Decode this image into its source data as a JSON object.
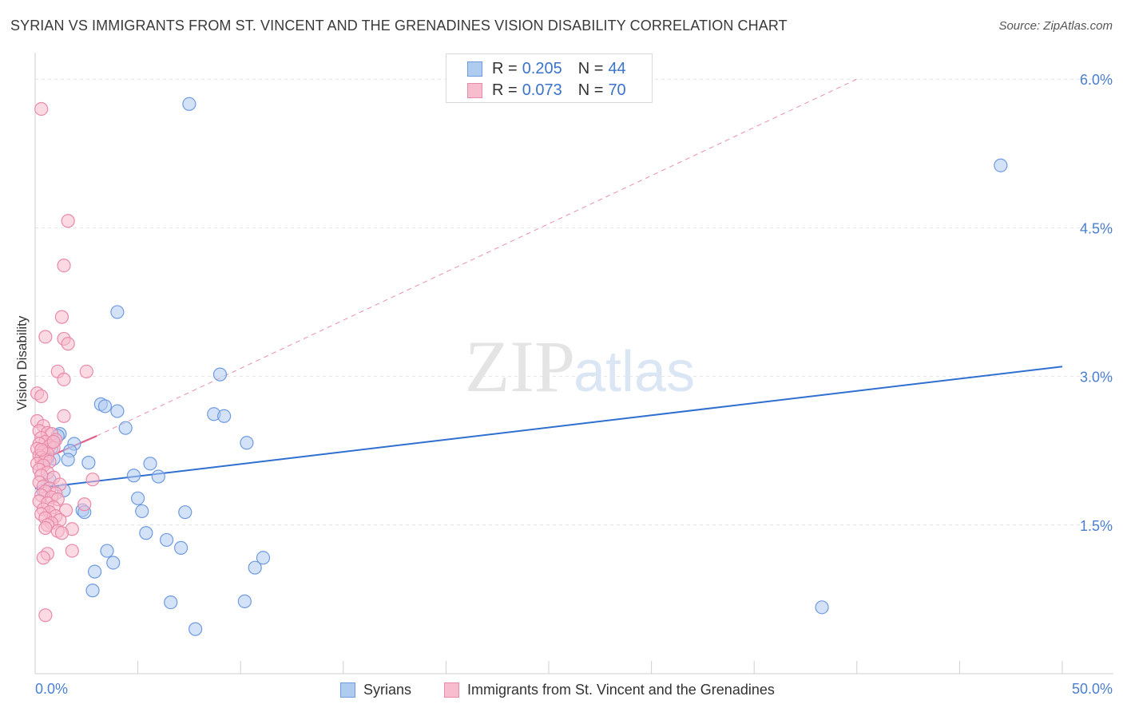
{
  "header": {
    "title": "SYRIAN VS IMMIGRANTS FROM ST. VINCENT AND THE GRENADINES VISION DISABILITY CORRELATION CHART",
    "source": "Source: ZipAtlas.com"
  },
  "watermark": {
    "zip": "ZIP",
    "atlas": "atlas"
  },
  "legend_top": [
    {
      "r_label": "R = ",
      "r_value": "0.205",
      "n_label": "N = ",
      "n_value": "44"
    },
    {
      "r_label": "R = ",
      "r_value": "0.073",
      "n_label": "N = ",
      "n_value": "70"
    }
  ],
  "legend_bottom": {
    "syrians": "Syrians",
    "immigrants": "Immigrants from St. Vincent and the Grenadines"
  },
  "colors": {
    "blue_fill": "#aecbf0",
    "blue_stroke": "#6f9be0",
    "blue_line": "#2f6fcf",
    "pink_fill": "#f7bccd",
    "pink_stroke": "#e98aa8",
    "pink_line": "#e0608a",
    "axis_text": "#4a7fd0",
    "grid": "#e2e2e2"
  },
  "chart_data": {
    "type": "scatter",
    "title": "SYRIAN VS IMMIGRANTS FROM ST. VINCENT AND THE GRENADINES VISION DISABILITY CORRELATION CHART",
    "xlabel": "",
    "ylabel": "Vision Disability",
    "xlim": [
      0,
      50
    ],
    "ylim": [
      0.0,
      6.3
    ],
    "x_tick_labels": [
      "0.0%",
      "50.0%"
    ],
    "y_ticks": [
      1.5,
      3.0,
      4.5,
      6.0
    ],
    "y_tick_labels": [
      "1.5%",
      "3.0%",
      "4.5%",
      "6.0%"
    ],
    "series": [
      {
        "name": "Syrians",
        "color": "blue",
        "points": [
          [
            7.5,
            5.75
          ],
          [
            47.0,
            5.13
          ],
          [
            4.0,
            3.65
          ],
          [
            9.0,
            3.02
          ],
          [
            3.2,
            2.72
          ],
          [
            3.4,
            2.7
          ],
          [
            4.0,
            2.65
          ],
          [
            8.7,
            2.62
          ],
          [
            9.2,
            2.6
          ],
          [
            4.4,
            2.48
          ],
          [
            1.2,
            2.42
          ],
          [
            1.1,
            2.4
          ],
          [
            10.3,
            2.33
          ],
          [
            1.9,
            2.32
          ],
          [
            1.7,
            2.25
          ],
          [
            0.9,
            2.17
          ],
          [
            1.6,
            2.16
          ],
          [
            2.6,
            2.13
          ],
          [
            5.6,
            2.12
          ],
          [
            4.8,
            2.0
          ],
          [
            6.0,
            1.99
          ],
          [
            0.7,
            1.96
          ],
          [
            1.4,
            1.85
          ],
          [
            0.4,
            1.85
          ],
          [
            5.0,
            1.77
          ],
          [
            2.3,
            1.65
          ],
          [
            2.4,
            1.63
          ],
          [
            5.2,
            1.64
          ],
          [
            7.3,
            1.63
          ],
          [
            5.4,
            1.42
          ],
          [
            6.4,
            1.35
          ],
          [
            7.1,
            1.27
          ],
          [
            3.5,
            1.24
          ],
          [
            11.1,
            1.17
          ],
          [
            3.8,
            1.12
          ],
          [
            10.7,
            1.07
          ],
          [
            2.9,
            1.03
          ],
          [
            2.8,
            0.84
          ],
          [
            6.6,
            0.72
          ],
          [
            10.2,
            0.73
          ],
          [
            7.8,
            0.45
          ],
          [
            38.3,
            0.67
          ],
          [
            0.6,
            2.18
          ],
          [
            0.8,
            2.28
          ]
        ]
      },
      {
        "name": "Immigrants from St. Vincent and the Grenadines",
        "color": "pink",
        "points": [
          [
            0.3,
            5.7
          ],
          [
            1.6,
            4.57
          ],
          [
            1.4,
            4.12
          ],
          [
            1.3,
            3.6
          ],
          [
            0.5,
            3.4
          ],
          [
            1.4,
            3.38
          ],
          [
            1.6,
            3.33
          ],
          [
            1.1,
            3.05
          ],
          [
            2.5,
            3.05
          ],
          [
            1.4,
            2.97
          ],
          [
            0.1,
            2.83
          ],
          [
            0.3,
            2.8
          ],
          [
            1.4,
            2.6
          ],
          [
            0.1,
            2.55
          ],
          [
            0.4,
            2.5
          ],
          [
            0.2,
            2.45
          ],
          [
            0.6,
            2.43
          ],
          [
            0.8,
            2.42
          ],
          [
            0.3,
            2.38
          ],
          [
            1.0,
            2.36
          ],
          [
            0.5,
            2.34
          ],
          [
            0.2,
            2.32
          ],
          [
            0.7,
            2.3
          ],
          [
            0.9,
            2.28
          ],
          [
            0.1,
            2.27
          ],
          [
            0.4,
            2.24
          ],
          [
            0.6,
            2.22
          ],
          [
            0.2,
            2.2
          ],
          [
            0.3,
            2.18
          ],
          [
            0.5,
            2.16
          ],
          [
            0.7,
            2.14
          ],
          [
            0.1,
            2.12
          ],
          [
            0.4,
            2.1
          ],
          [
            0.2,
            2.06
          ],
          [
            0.6,
            2.03
          ],
          [
            0.3,
            2.0
          ],
          [
            0.9,
            1.98
          ],
          [
            2.8,
            1.96
          ],
          [
            0.2,
            1.93
          ],
          [
            1.2,
            1.91
          ],
          [
            0.4,
            1.89
          ],
          [
            0.7,
            1.87
          ],
          [
            0.5,
            1.84
          ],
          [
            1.0,
            1.82
          ],
          [
            0.3,
            1.8
          ],
          [
            0.8,
            1.78
          ],
          [
            1.1,
            1.76
          ],
          [
            0.2,
            1.74
          ],
          [
            0.6,
            1.72
          ],
          [
            2.4,
            1.71
          ],
          [
            0.9,
            1.68
          ],
          [
            0.4,
            1.66
          ],
          [
            1.5,
            1.65
          ],
          [
            0.7,
            1.63
          ],
          [
            0.3,
            1.61
          ],
          [
            1.0,
            1.59
          ],
          [
            0.5,
            1.57
          ],
          [
            1.2,
            1.55
          ],
          [
            0.8,
            1.52
          ],
          [
            0.6,
            1.5
          ],
          [
            0.5,
            1.47
          ],
          [
            1.8,
            1.46
          ],
          [
            1.1,
            1.44
          ],
          [
            1.3,
            1.42
          ],
          [
            1.8,
            1.24
          ],
          [
            0.6,
            1.21
          ],
          [
            0.4,
            1.17
          ],
          [
            0.5,
            0.59
          ],
          [
            0.9,
            2.34
          ],
          [
            0.3,
            2.26
          ]
        ]
      }
    ],
    "trend_lines": [
      {
        "series": "Syrians",
        "x": [
          0,
          50
        ],
        "y": [
          1.87,
          3.1
        ],
        "style": "solid"
      },
      {
        "series": "Immigrants from St. Vincent and the Grenadines",
        "x": [
          0,
          3
        ],
        "y": [
          2.13,
          2.4
        ],
        "style": "solid"
      },
      {
        "series": "Immigrants from St. Vincent and the Grenadines",
        "x": [
          3,
          40
        ],
        "y": [
          2.4,
          6.0
        ],
        "style": "dashed"
      }
    ]
  }
}
